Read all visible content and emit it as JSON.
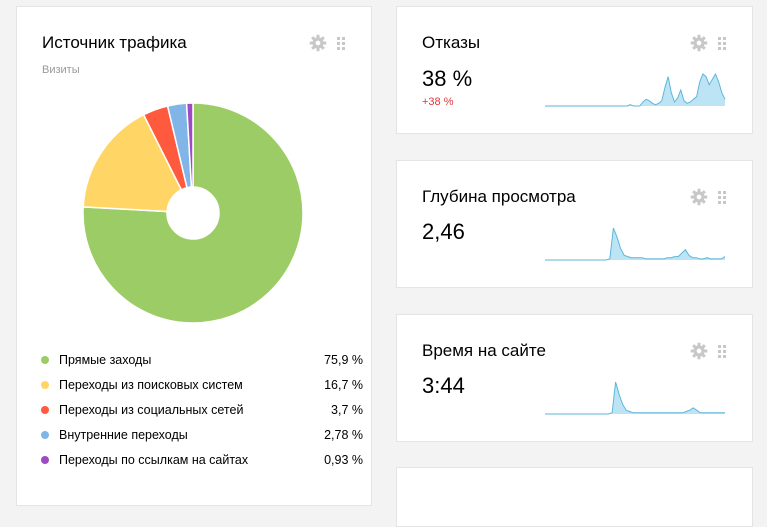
{
  "traffic": {
    "title": "Источник трафика",
    "subtitle": "Визиты",
    "icons": {
      "settings": "gear-icon",
      "drag": "drag-handle-icon"
    },
    "items": [
      {
        "label": "Прямые заходы",
        "value": "75,9 %",
        "share": 75.9,
        "color": "#9ccc65"
      },
      {
        "label": "Переходы из поисковых систем",
        "value": "16,7 %",
        "share": 16.7,
        "color": "#ffd666"
      },
      {
        "label": "Переходы из социальных сетей",
        "value": "3,7 %",
        "share": 3.7,
        "color": "#ff5a3d"
      },
      {
        "label": "Внутренние переходы",
        "value": "2,78 %",
        "share": 2.78,
        "color": "#81b5e8"
      },
      {
        "label": "Переходы по ссылкам на сайтах",
        "value": "0,93 %",
        "share": 0.93,
        "color": "#9c4bc2"
      }
    ]
  },
  "bounce": {
    "title": "Отказы",
    "value": "38 %",
    "delta": "+38 %",
    "series": [
      0,
      0,
      0,
      0,
      0,
      0,
      0,
      0,
      0,
      0,
      0,
      0,
      0,
      0,
      0,
      0,
      0,
      0,
      0,
      0,
      0,
      0,
      0,
      0,
      0,
      0,
      0,
      1,
      0,
      0,
      0,
      3,
      5,
      4,
      2,
      1,
      2,
      4,
      14,
      22,
      10,
      3,
      6,
      12,
      4,
      2,
      3,
      5,
      7,
      18,
      24,
      22,
      16,
      20,
      24,
      18,
      10,
      5
    ]
  },
  "depth": {
    "title": "Глубина просмотра",
    "value": "2,46",
    "series": [
      0,
      0,
      0,
      0,
      0,
      0,
      0,
      0,
      0,
      0,
      0,
      0,
      0,
      0,
      0,
      0,
      0,
      0,
      1,
      28,
      20,
      10,
      4,
      3,
      2,
      2,
      2,
      2,
      1,
      1,
      1,
      1,
      1,
      1,
      2,
      2,
      3,
      3,
      6,
      9,
      4,
      2,
      2,
      1,
      1,
      2,
      1,
      1,
      1,
      1,
      3
    ]
  },
  "time": {
    "title": "Время на сайте",
    "value": "3:44",
    "series": [
      0,
      0,
      0,
      0,
      0,
      0,
      0,
      0,
      0,
      0,
      0,
      0,
      0,
      0,
      0,
      0,
      0,
      0,
      0,
      1,
      26,
      16,
      8,
      3,
      2,
      1,
      1,
      1,
      1,
      1,
      1,
      1,
      1,
      1,
      1,
      1,
      1,
      1,
      1,
      1,
      2,
      3,
      5,
      3,
      1,
      1,
      1,
      1,
      1,
      1,
      1,
      1
    ]
  }
}
